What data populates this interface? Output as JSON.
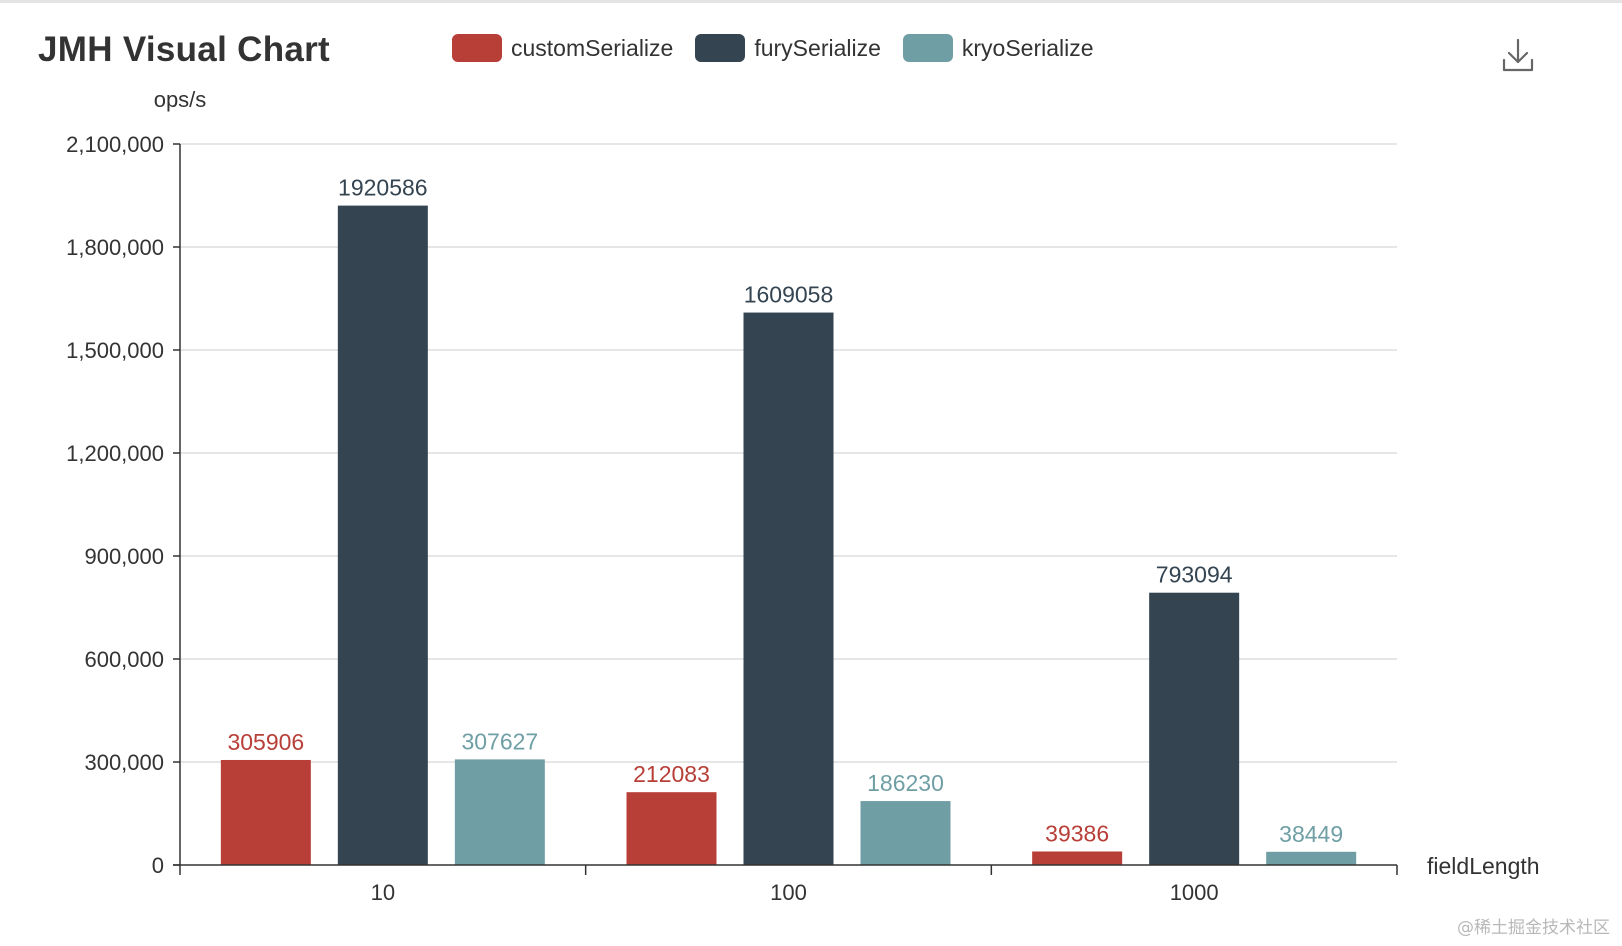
{
  "chart_data": {
    "type": "bar",
    "title": "JMH Visual Chart",
    "ylabel": "ops/s",
    "xlabel": "fieldLength",
    "categories": [
      "10",
      "100",
      "1000"
    ],
    "ylim": [
      0,
      2100000
    ],
    "yticks": [
      0,
      300000,
      600000,
      900000,
      1200000,
      1500000,
      1800000,
      2100000
    ],
    "ytick_labels": [
      "0",
      "300,000",
      "600,000",
      "900,000",
      "1,200,000",
      "1,500,000",
      "1,800,000",
      "2,100,000"
    ],
    "grid": true,
    "legend_position": "top",
    "series": [
      {
        "name": "customSerialize",
        "color": "#b83f37",
        "values": [
          305906,
          212083,
          39386
        ]
      },
      {
        "name": "furySerialize",
        "color": "#344451",
        "values": [
          1920586,
          1609058,
          793094
        ]
      },
      {
        "name": "kryoSerialize",
        "color": "#6f9fa4",
        "values": [
          307627,
          186230,
          38449
        ]
      }
    ]
  },
  "toolbar": {
    "download_icon": "download-icon"
  },
  "watermark": "@稀土掘金技术社区"
}
